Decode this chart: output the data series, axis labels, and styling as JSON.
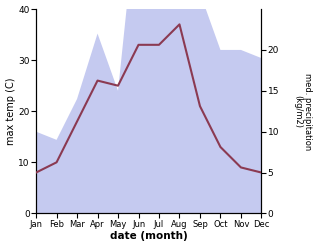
{
  "months": [
    "Jan",
    "Feb",
    "Mar",
    "Apr",
    "May",
    "Jun",
    "Jul",
    "Aug",
    "Sep",
    "Oct",
    "Nov",
    "Dec"
  ],
  "max_temp": [
    8,
    10,
    18,
    26,
    25,
    33,
    33,
    37,
    21,
    13,
    9,
    8
  ],
  "precipitation": [
    10,
    9,
    14,
    22,
    15,
    39,
    35,
    38,
    27,
    20,
    20,
    19
  ],
  "temp_color": "#8b3a52",
  "precip_color_fill": "#c5caf0",
  "ylabel_left": "max temp (C)",
  "ylabel_right": "med. precipitation\n(kg/m2)",
  "xlabel": "date (month)",
  "ylim_left": [
    0,
    40
  ],
  "ylim_right": [
    0,
    25
  ],
  "left_ticks": [
    0,
    10,
    20,
    30,
    40
  ],
  "right_ticks": [
    0,
    5,
    10,
    15,
    20
  ],
  "background_color": "#ffffff"
}
